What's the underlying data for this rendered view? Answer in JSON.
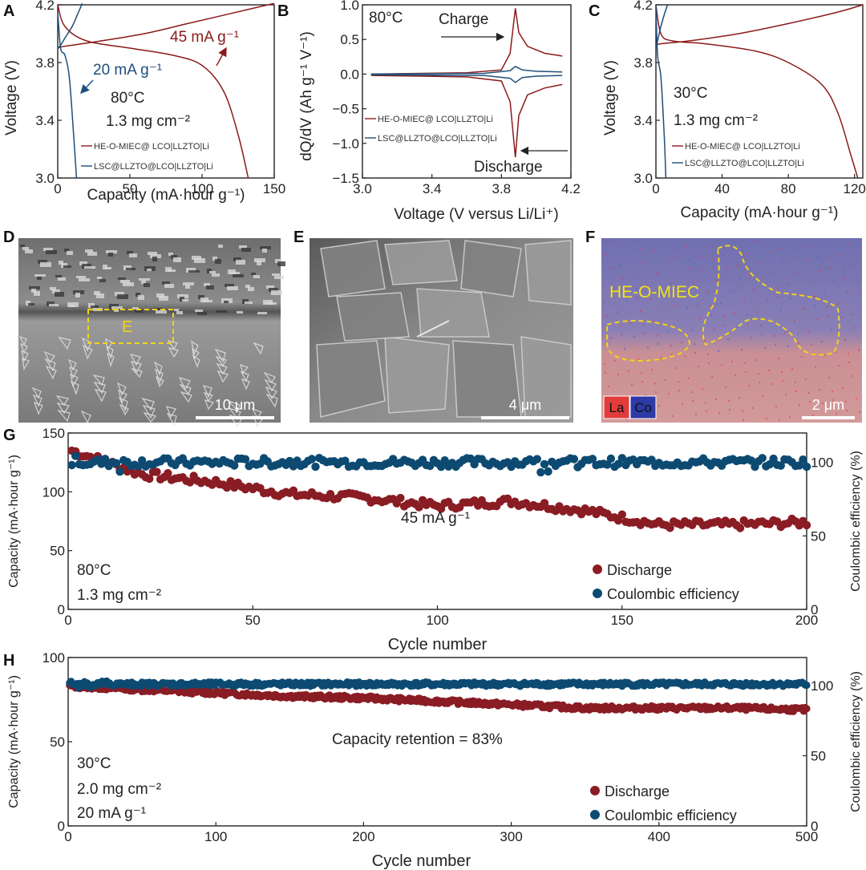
{
  "panels": {
    "A": {
      "label": "A",
      "xlabel": "Capacity (mA·hour g⁻¹)",
      "ylabel": "Voltage (V)",
      "xticks": [
        "0",
        "50",
        "100",
        "150"
      ],
      "yticks": [
        "3.0",
        "3.4",
        "3.8",
        "4.2"
      ],
      "ann_rate_red": "45 mA g⁻¹",
      "ann_rate_blue": "20 mA g⁻¹",
      "ann_temp": "80°C",
      "ann_load": "1.3 mg cm⁻²",
      "legend": [
        "HE-O-MIEC@ LCO|LLZTO|Li",
        "LSC@LLZTO@LCO|LLZTO|Li"
      ]
    },
    "B": {
      "label": "B",
      "xlabel": "Voltage (V versus Li/Li⁺)",
      "ylabel": "dQ/dV (Ah g⁻¹ V⁻¹)",
      "xticks": [
        "3.0",
        "3.4",
        "3.8",
        "4.2"
      ],
      "yticks": [
        "1.0",
        "0.5",
        "0.0",
        "−0.5",
        "−1.0",
        "−1.5"
      ],
      "ann_temp": "80°C",
      "ann_charge": "Charge",
      "ann_discharge": "Discharge",
      "legend": [
        "HE-O-MIEC@ LCO|LLZTO|Li",
        "LSC@LLZTO@LCO|LLZTO|Li"
      ]
    },
    "C": {
      "label": "C",
      "xlabel": "Capacity (mA·hour g⁻¹)",
      "ylabel": "Voltage (V)",
      "xticks": [
        "0",
        "40",
        "80",
        "120"
      ],
      "yticks": [
        "3.0",
        "3.4",
        "3.8",
        "4.2"
      ],
      "ann_temp": "30°C",
      "ann_load": "1.3 mg cm⁻²",
      "legend": [
        "HE-O-MIEC@ LCO|LLZTO|Li",
        "LSC@LLZTO@LCO|LLZTO|Li"
      ]
    },
    "D": {
      "label": "D",
      "scalebar": "10 μm",
      "box_label": "E"
    },
    "E": {
      "label": "E",
      "scalebar": "4 μm"
    },
    "F": {
      "label": "F",
      "scalebar": "2 μm",
      "region_label": "HE-O-MIEC",
      "key_la": "La",
      "key_co": "Co"
    },
    "G": {
      "label": "G",
      "xlabel": "Cycle number",
      "ylabel_left": "Capacity (mA·hour g⁻¹)",
      "ylabel_right": "Coulombic efficiency (%)",
      "xticks": [
        "0",
        "50",
        "100",
        "150",
        "200"
      ],
      "yticks_left": [
        "0",
        "50",
        "100",
        "150"
      ],
      "yticks_right": [
        "0",
        "50",
        "100"
      ],
      "ann_rate": "45 mA g⁻¹",
      "ann_temp": "80°C",
      "ann_load": "1.3 mg cm⁻²",
      "legend": [
        "Discharge",
        "Coulombic efficiency"
      ]
    },
    "H": {
      "label": "H",
      "xlabel": "Cycle number",
      "ylabel_left": "Capacity (mA·hour g⁻¹)",
      "ylabel_right": "Coulombic efficiency (%)",
      "xticks": [
        "0",
        "100",
        "200",
        "300",
        "400",
        "500"
      ],
      "yticks_left": [
        "0",
        "50",
        "100"
      ],
      "yticks_right": [
        "0",
        "50",
        "100"
      ],
      "ann_retention": "Capacity retention = 83%",
      "ann_temp": "30°C",
      "ann_load": "2.0 mg cm⁻²",
      "ann_rate": "20 mA g⁻¹",
      "legend": [
        "Discharge",
        "Coulombic efficiency"
      ]
    }
  },
  "colors": {
    "red": "#8b1a1a",
    "blue": "#1f4e79",
    "navy": "#0d4a72",
    "maroon": "#8a1c24"
  },
  "chart_data": [
    {
      "panel": "A",
      "type": "line",
      "xlim": [
        0,
        150
      ],
      "ylim": [
        3.0,
        4.2
      ],
      "series": [
        {
          "name": "HE-O-MIEC@ LCO|LLZTO|Li charge",
          "x": [
            0,
            3,
            10,
            30,
            60,
            90,
            120,
            150
          ],
          "y": [
            3.9,
            3.91,
            3.92,
            3.95,
            4.0,
            4.07,
            4.14,
            4.21
          ]
        },
        {
          "name": "HE-O-MIEC@ LCO|LLZTO|Li discharge",
          "x": [
            0,
            5,
            20,
            50,
            80,
            100,
            115,
            125,
            132
          ],
          "y": [
            4.2,
            4.05,
            3.95,
            3.9,
            3.85,
            3.78,
            3.6,
            3.3,
            3.0
          ]
        },
        {
          "name": "LSC@LLZTO@LCO|LLZTO|Li charge",
          "x": [
            0,
            2,
            5,
            10,
            14,
            17
          ],
          "y": [
            3.9,
            3.92,
            3.97,
            4.05,
            4.14,
            4.21
          ]
        },
        {
          "name": "LSC@LLZTO@LCO|LLZTO|Li discharge",
          "x": [
            0,
            2,
            5,
            8,
            11,
            13
          ],
          "y": [
            4.15,
            3.9,
            3.85,
            3.7,
            3.3,
            3.0
          ]
        }
      ]
    },
    {
      "panel": "B",
      "type": "line",
      "xlim": [
        3.0,
        4.2
      ],
      "ylim": [
        -1.5,
        1.0
      ],
      "series": [
        {
          "name": "HE-O-MIEC@ LCO|LLZTO|Li charge",
          "x": [
            3.05,
            3.6,
            3.8,
            3.85,
            3.88,
            3.9,
            3.95,
            4.05,
            4.15
          ],
          "y": [
            0.0,
            0.02,
            0.06,
            0.3,
            0.95,
            0.6,
            0.4,
            0.3,
            0.26
          ]
        },
        {
          "name": "HE-O-MIEC@ LCO|LLZTO|Li discharge",
          "x": [
            3.05,
            3.6,
            3.8,
            3.85,
            3.88,
            3.9,
            3.95,
            4.05,
            4.15
          ],
          "y": [
            -0.02,
            -0.04,
            -0.1,
            -0.4,
            -1.2,
            -0.6,
            -0.3,
            -0.2,
            -0.15
          ]
        },
        {
          "name": "LSC@LLZTO@LCO|LLZTO|Li charge",
          "x": [
            3.05,
            3.7,
            3.85,
            3.88,
            3.92,
            4.0,
            4.15
          ],
          "y": [
            0.0,
            0.01,
            0.05,
            0.11,
            0.06,
            0.04,
            0.03
          ]
        },
        {
          "name": "LSC@LLZTO@LCO|LLZTO|Li discharge",
          "x": [
            3.05,
            3.7,
            3.85,
            3.88,
            3.92,
            4.0,
            4.15
          ],
          "y": [
            -0.01,
            -0.02,
            -0.06,
            -0.12,
            -0.05,
            -0.03,
            -0.02
          ]
        }
      ]
    },
    {
      "panel": "C",
      "type": "line",
      "xlim": [
        0,
        125
      ],
      "ylim": [
        3.0,
        4.2
      ],
      "series": [
        {
          "name": "HE-O-MIEC@ LCO|LLZTO|Li charge",
          "x": [
            0,
            3,
            20,
            50,
            80,
            110,
            125
          ],
          "y": [
            3.92,
            3.93,
            3.95,
            4.0,
            4.07,
            4.15,
            4.2
          ]
        },
        {
          "name": "HE-O-MIEC@ LCO|LLZTO|Li discharge",
          "x": [
            0,
            3,
            10,
            30,
            60,
            80,
            100,
            110,
            118,
            122
          ],
          "y": [
            4.2,
            4.0,
            3.95,
            3.93,
            3.88,
            3.8,
            3.65,
            3.45,
            3.15,
            3.0
          ]
        },
        {
          "name": "LSC@LLZTO@LCO|LLZTO|Li charge",
          "x": [
            0,
            1,
            3,
            5,
            7
          ],
          "y": [
            3.9,
            3.95,
            4.05,
            4.13,
            4.2
          ]
        },
        {
          "name": "LSC@LLZTO@LCO|LLZTO|Li discharge",
          "x": [
            0,
            1,
            3,
            5,
            6
          ],
          "y": [
            4.2,
            3.85,
            3.7,
            3.3,
            3.0
          ]
        }
      ]
    },
    {
      "panel": "G",
      "type": "scatter",
      "xlim": [
        0,
        200
      ],
      "ylim": [
        0,
        150
      ],
      "ylim_right": [
        0,
        120
      ],
      "series": [
        {
          "name": "Discharge",
          "x": [
            1,
            20,
            40,
            60,
            80,
            100,
            120,
            140,
            160,
            180,
            200
          ],
          "y": [
            135,
            115,
            108,
            98,
            95,
            88,
            92,
            84,
            72,
            72,
            74
          ]
        },
        {
          "name": "Coulombic efficiency",
          "x": [
            1,
            50,
            100,
            150,
            200
          ],
          "y": [
            100,
            100,
            100,
            100,
            100
          ],
          "axis": "right"
        }
      ]
    },
    {
      "panel": "H",
      "type": "scatter",
      "xlim": [
        0,
        500
      ],
      "ylim": [
        0,
        100
      ],
      "ylim_right": [
        0,
        120
      ],
      "series": [
        {
          "name": "Discharge",
          "x": [
            1,
            50,
            100,
            150,
            200,
            250,
            300,
            350,
            400,
            450,
            500
          ],
          "y": [
            83,
            81,
            79,
            77,
            76,
            74,
            72,
            70,
            70,
            70,
            69
          ]
        },
        {
          "name": "Coulombic efficiency",
          "x": [
            1,
            100,
            200,
            300,
            400,
            500
          ],
          "y": [
            100,
            100,
            100,
            100,
            100,
            100
          ],
          "axis": "right"
        }
      ]
    }
  ]
}
